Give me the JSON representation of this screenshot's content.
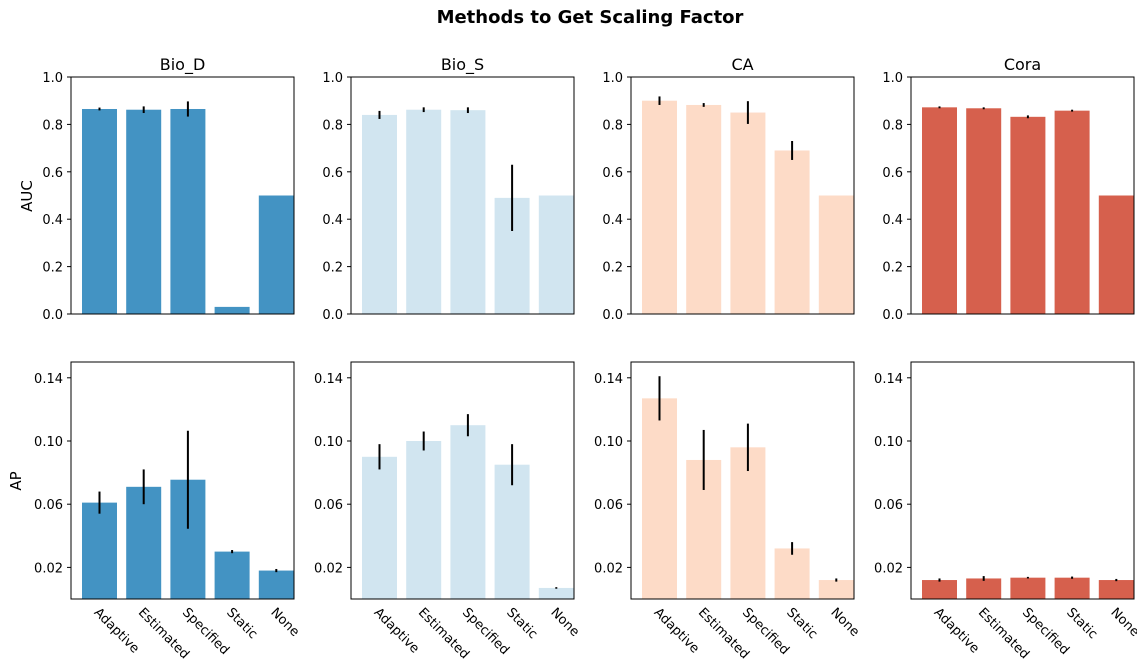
{
  "figure": {
    "title": "Methods to Get Scaling Factor"
  },
  "row_labels": [
    "AUC",
    "AP"
  ],
  "chart_data": [
    {
      "type": "bar",
      "row": "AUC",
      "title": "Bio_D",
      "color": "#4393c3",
      "categories": [
        "Adaptive",
        "Estimated",
        "Specified",
        "Static",
        "None"
      ],
      "values": [
        0.865,
        0.862,
        0.865,
        0.03,
        0.5
      ],
      "errors": [
        0.006,
        0.014,
        0.032,
        0.0,
        0.0
      ],
      "ylim": [
        0,
        1.0
      ],
      "yticks": [
        "0.0",
        "0.2",
        "0.4",
        "0.6",
        "0.8",
        "1.0"
      ],
      "ytick_values": [
        0,
        0.2,
        0.4,
        0.6,
        0.8,
        1.0
      ],
      "show_xticklabels": false
    },
    {
      "type": "bar",
      "row": "AUC",
      "title": "Bio_S",
      "color": "#d1e5f0",
      "categories": [
        "Adaptive",
        "Estimated",
        "Specified",
        "Static",
        "None"
      ],
      "values": [
        0.84,
        0.862,
        0.86,
        0.49,
        0.5
      ],
      "errors": [
        0.017,
        0.01,
        0.012,
        0.14,
        0.0
      ],
      "ylim": [
        0,
        1.0
      ],
      "yticks": [
        "0.0",
        "0.2",
        "0.4",
        "0.6",
        "0.8",
        "1.0"
      ],
      "ytick_values": [
        0,
        0.2,
        0.4,
        0.6,
        0.8,
        1.0
      ],
      "show_xticklabels": false
    },
    {
      "type": "bar",
      "row": "AUC",
      "title": "CA",
      "color": "#fddbc7",
      "categories": [
        "Adaptive",
        "Estimated",
        "Specified",
        "Static",
        "None"
      ],
      "values": [
        0.9,
        0.882,
        0.85,
        0.69,
        0.5
      ],
      "errors": [
        0.018,
        0.008,
        0.048,
        0.04,
        0.0
      ],
      "ylim": [
        0,
        1.0
      ],
      "yticks": [
        "0.0",
        "0.2",
        "0.4",
        "0.6",
        "0.8",
        "1.0"
      ],
      "ytick_values": [
        0,
        0.2,
        0.4,
        0.6,
        0.8,
        1.0
      ],
      "show_xticklabels": false
    },
    {
      "type": "bar",
      "row": "AUC",
      "title": "Cora",
      "color": "#d6604d",
      "categories": [
        "Adaptive",
        "Estimated",
        "Specified",
        "Static",
        "None"
      ],
      "values": [
        0.872,
        0.868,
        0.832,
        0.858,
        0.5
      ],
      "errors": [
        0.004,
        0.004,
        0.006,
        0.004,
        0.0
      ],
      "ylim": [
        0,
        1.0
      ],
      "yticks": [
        "0.0",
        "0.2",
        "0.4",
        "0.6",
        "0.8",
        "1.0"
      ],
      "ytick_values": [
        0,
        0.2,
        0.4,
        0.6,
        0.8,
        1.0
      ],
      "show_xticklabels": false
    },
    {
      "type": "bar",
      "row": "AP",
      "title": "",
      "color": "#4393c3",
      "categories": [
        "Adaptive",
        "Estimated",
        "Specified",
        "Static",
        "None"
      ],
      "values": [
        0.061,
        0.071,
        0.0755,
        0.03,
        0.018
      ],
      "errors": [
        0.007,
        0.011,
        0.031,
        0.001,
        0.001
      ],
      "ylim": [
        0.0,
        0.15
      ],
      "yticks": [
        "0.02",
        "0.06",
        "0.10",
        "0.14"
      ],
      "ytick_values": [
        0.02,
        0.06,
        0.1,
        0.14
      ],
      "show_xticklabels": true
    },
    {
      "type": "bar",
      "row": "AP",
      "title": "",
      "color": "#d1e5f0",
      "categories": [
        "Adaptive",
        "Estimated",
        "Specified",
        "Static",
        "None"
      ],
      "values": [
        0.09,
        0.1,
        0.11,
        0.085,
        0.007
      ],
      "errors": [
        0.008,
        0.006,
        0.007,
        0.013,
        0.0005
      ],
      "ylim": [
        0.0,
        0.15
      ],
      "yticks": [
        "0.02",
        "0.06",
        "0.10",
        "0.14"
      ],
      "ytick_values": [
        0.02,
        0.06,
        0.1,
        0.14
      ],
      "show_xticklabels": true
    },
    {
      "type": "bar",
      "row": "AP",
      "title": "",
      "color": "#fddbc7",
      "categories": [
        "Adaptive",
        "Estimated",
        "Specified",
        "Static",
        "None"
      ],
      "values": [
        0.127,
        0.088,
        0.096,
        0.032,
        0.012
      ],
      "errors": [
        0.014,
        0.019,
        0.015,
        0.004,
        0.001
      ],
      "ylim": [
        0.0,
        0.15
      ],
      "yticks": [
        "0.02",
        "0.06",
        "0.10",
        "0.14"
      ],
      "ytick_values": [
        0.02,
        0.06,
        0.1,
        0.14
      ],
      "show_xticklabels": true
    },
    {
      "type": "bar",
      "row": "AP",
      "title": "",
      "color": "#d6604d",
      "categories": [
        "Adaptive",
        "Estimated",
        "Specified",
        "Static",
        "None"
      ],
      "values": [
        0.012,
        0.013,
        0.0135,
        0.0135,
        0.012
      ],
      "errors": [
        0.001,
        0.0015,
        0.0005,
        0.0007,
        0.0007
      ],
      "ylim": [
        0.0,
        0.15
      ],
      "yticks": [
        "0.02",
        "0.06",
        "0.10",
        "0.14"
      ],
      "ytick_values": [
        0.02,
        0.06,
        0.1,
        0.14
      ],
      "show_xticklabels": true
    }
  ]
}
